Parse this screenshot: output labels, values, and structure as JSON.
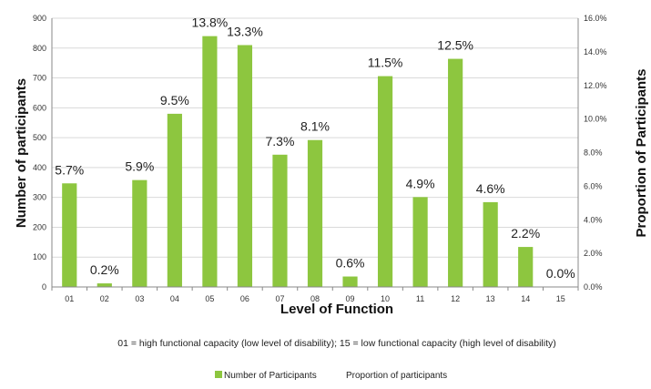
{
  "chart_data": {
    "type": "bar",
    "xlabel": "Level of Function",
    "ylabel": "Number of participants",
    "y2label": "Proportion of Participants",
    "categories": [
      "01",
      "02",
      "03",
      "04",
      "05",
      "06",
      "07",
      "08",
      "09",
      "10",
      "11",
      "12",
      "13",
      "14",
      "15"
    ],
    "series": [
      {
        "name": "Number of Participants",
        "color": "#8dc63f",
        "values": [
          347,
          12,
          358,
          580,
          840,
          810,
          443,
          492,
          35,
          706,
          301,
          764,
          284,
          134,
          0
        ]
      },
      {
        "name": "Proportion of participants",
        "values": [
          5.7,
          0.2,
          5.9,
          9.5,
          13.8,
          13.3,
          7.3,
          8.1,
          0.6,
          11.5,
          4.9,
          12.5,
          4.6,
          2.2,
          0.0
        ]
      }
    ],
    "data_labels": [
      "5.7%",
      "0.2%",
      "5.9%",
      "9.5%",
      "13.8%",
      "13.3%",
      "7.3%",
      "8.1%",
      "0.6%",
      "11.5%",
      "4.9%",
      "12.5%",
      "4.6%",
      "2.2%",
      "0.0%"
    ],
    "ylim": [
      0,
      900
    ],
    "yticks": [
      "0",
      "100",
      "200",
      "300",
      "400",
      "500",
      "600",
      "700",
      "800",
      "900"
    ],
    "y2lim": [
      0,
      16
    ],
    "y2ticks": [
      "0.0%",
      "2.0%",
      "4.0%",
      "6.0%",
      "8.0%",
      "10.0%",
      "12.0%",
      "14.0%",
      "16.0%"
    ],
    "grid": true,
    "legend_position": "bottom",
    "caption": "01 = high functional capacity (low level of disability); 15 = low functional capacity (high level of disability)"
  }
}
